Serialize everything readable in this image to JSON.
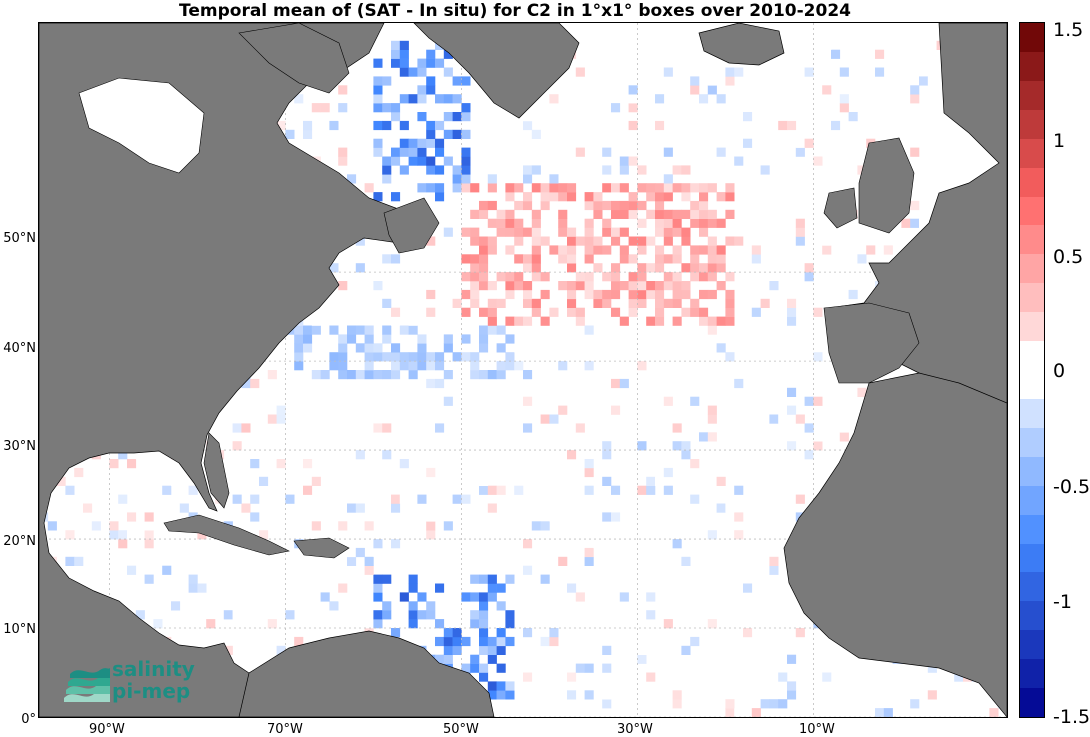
{
  "title": "Temporal mean of (SAT - In situ) for C2 in 1°x1° boxes over 2010-2024",
  "colors": {
    "land": "#7a7a7a",
    "ocean": "#ffffff",
    "grid": "#bdbdbd",
    "coast": "#000000"
  },
  "map": {
    "lon_range": [
      -98,
      12
    ],
    "lat_range": [
      0,
      78
    ],
    "lat_ticks": [
      {
        "value": 0,
        "label": "0°"
      },
      {
        "value": 10,
        "label": "10°N"
      },
      {
        "value": 20,
        "label": "20°N"
      },
      {
        "value": 30,
        "label": "30°N"
      },
      {
        "value": 40,
        "label": "40°N"
      },
      {
        "value": 50,
        "label": "50°N"
      }
    ],
    "lon_ticks": [
      {
        "value": -90,
        "label": "90°W"
      },
      {
        "value": -70,
        "label": "70°W"
      },
      {
        "value": -50,
        "label": "50°W"
      },
      {
        "value": -30,
        "label": "30°W"
      },
      {
        "value": -10,
        "label": "10°W"
      }
    ]
  },
  "colorbar": {
    "min": -1.5,
    "max": 1.5,
    "ticks": [
      {
        "value": 1.5,
        "label": "1.5"
      },
      {
        "value": 1,
        "label": "1"
      },
      {
        "value": 0.5,
        "label": "0.5"
      },
      {
        "value": 0,
        "label": "0"
      },
      {
        "value": -0.5,
        "label": "-0.5"
      },
      {
        "value": -1,
        "label": "-1"
      },
      {
        "value": -1.5,
        "label": "-1.5"
      }
    ]
  },
  "logo": {
    "line1": "salinity",
    "line2": "pi-mep"
  }
}
